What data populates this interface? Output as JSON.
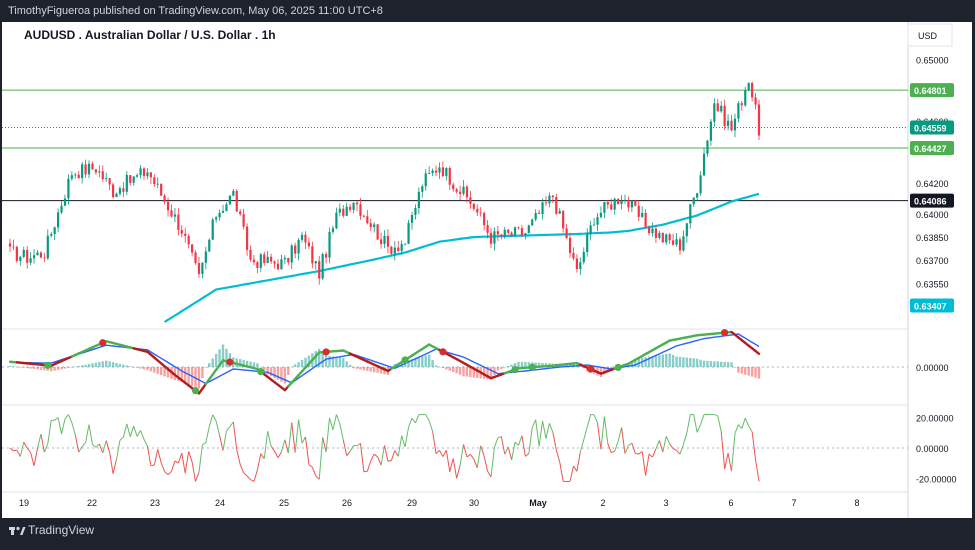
{
  "header": {
    "publisher": "TimothyFigueroa published on TradingView.com, May 06, 2025 11:00 UTC+8"
  },
  "footer": {
    "brand": "TradingView"
  },
  "chart_data": {
    "type": "candlestick",
    "title": "AUDUSD . Australian Dollar / U.S. Dollar . 1h",
    "currency": "USD",
    "ylim": [
      0.633,
      0.651
    ],
    "y_ticks": [
      "0.65000",
      "0.64600",
      "0.64200",
      "0.64000",
      "0.63850",
      "0.63700",
      "0.63550"
    ],
    "y_tick_values": [
      0.65,
      0.646,
      0.642,
      0.64,
      0.6385,
      0.637,
      0.6355
    ],
    "x_ticks": [
      "19",
      "22",
      "23",
      "24",
      "25",
      "26",
      "29",
      "30",
      "May",
      "2",
      "3",
      "6",
      "7",
      "8"
    ],
    "horizontal_levels": [
      {
        "label": "0.64801",
        "value": 0.64801,
        "color": "#4caf50",
        "style": "solid"
      },
      {
        "label": "0.64559",
        "value": 0.64559,
        "color": "#089981",
        "style": "dotted"
      },
      {
        "label": "0.64427",
        "value": 0.64427,
        "color": "#4caf50",
        "style": "solid"
      },
      {
        "label": "0.64086",
        "value": 0.64086,
        "color": "#131722",
        "style": "solid"
      },
      {
        "label": "0.63407",
        "value": 0.63407,
        "color": "#00bcd4",
        "style": "marker"
      }
    ],
    "candle_anchors": {
      "x": [
        0,
        5,
        10,
        18,
        25,
        30,
        40,
        50,
        55,
        60,
        65,
        70,
        80,
        85,
        90,
        95,
        100,
        110,
        115,
        120,
        125,
        130,
        135,
        140,
        150,
        158,
        165,
        170,
        178,
        185,
        190,
        195,
        200,
        205,
        210,
        215,
        218
      ],
      "close": [
        0.6375,
        0.6372,
        0.6375,
        0.6427,
        0.643,
        0.6415,
        0.6428,
        0.639,
        0.6358,
        0.64,
        0.6413,
        0.637,
        0.6368,
        0.6385,
        0.6362,
        0.6398,
        0.641,
        0.6378,
        0.6382,
        0.642,
        0.6432,
        0.6418,
        0.6405,
        0.6385,
        0.6388,
        0.6412,
        0.6362,
        0.6398,
        0.6412,
        0.6393,
        0.6384,
        0.638,
        0.6418,
        0.6472,
        0.6455,
        0.6488,
        0.6455
      ]
    },
    "ma_anchors": {
      "x": [
        45,
        60,
        75,
        90,
        105,
        115,
        125,
        135,
        150,
        165,
        175,
        180,
        190,
        200,
        210,
        218
      ],
      "value": [
        0.633,
        0.6351,
        0.6357,
        0.6363,
        0.637,
        0.6375,
        0.6382,
        0.6385,
        0.6386,
        0.6387,
        0.6388,
        0.6389,
        0.6393,
        0.6399,
        0.6408,
        0.6413
      ]
    },
    "macd": {
      "ylim": [
        -0.005,
        0.005
      ],
      "zero_label": "0.00000",
      "fast_anchors": [
        [
          0,
          0.0008
        ],
        [
          12,
          0.0002
        ],
        [
          28,
          0.0039
        ],
        [
          40,
          0.0023
        ],
        [
          48,
          -0.0012
        ],
        [
          55,
          -0.004
        ],
        [
          62,
          0.001
        ],
        [
          72,
          -0.0003
        ],
        [
          80,
          -0.0035
        ],
        [
          90,
          0.0022
        ],
        [
          97,
          0.0025
        ],
        [
          110,
          -0.0006
        ],
        [
          122,
          0.0034
        ],
        [
          130,
          0.0012
        ],
        [
          140,
          -0.0017
        ],
        [
          148,
          -0.0002
        ],
        [
          158,
          0.0002
        ],
        [
          165,
          0.0006
        ],
        [
          172,
          -0.001
        ],
        [
          180,
          0.0005
        ],
        [
          192,
          0.004
        ],
        [
          200,
          0.0048
        ],
        [
          210,
          0.0053
        ],
        [
          218,
          0.002
        ]
      ],
      "signal_anchors": [
        [
          0,
          0.0007
        ],
        [
          12,
          0.0006
        ],
        [
          28,
          0.0033
        ],
        [
          40,
          0.0026
        ],
        [
          50,
          -0.0006
        ],
        [
          57,
          -0.0025
        ],
        [
          65,
          -0.0003
        ],
        [
          75,
          -0.0008
        ],
        [
          82,
          -0.0024
        ],
        [
          92,
          0.0012
        ],
        [
          100,
          0.0019
        ],
        [
          112,
          -0.0002
        ],
        [
          124,
          0.0027
        ],
        [
          132,
          0.0015
        ],
        [
          142,
          -0.001
        ],
        [
          150,
          -0.0006
        ],
        [
          160,
          0.0
        ],
        [
          168,
          0.0003
        ],
        [
          175,
          -0.0003
        ],
        [
          182,
          0.0003
        ],
        [
          194,
          0.0032
        ],
        [
          202,
          0.0043
        ],
        [
          212,
          0.005
        ],
        [
          218,
          0.0031
        ]
      ],
      "cross_up": [
        11,
        54,
        73,
        115,
        147,
        152,
        177
      ],
      "cross_down": [
        27,
        64,
        92,
        126,
        169,
        208
      ]
    },
    "oscillator": {
      "ylim": [
        -25,
        25
      ],
      "y_ticks": [
        "20.00000",
        "0.00000",
        "-20.00000"
      ],
      "y_tick_values": [
        20,
        0,
        -20
      ]
    }
  }
}
